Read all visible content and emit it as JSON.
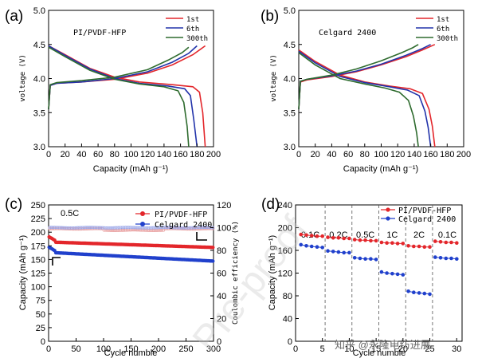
{
  "chart_data": [
    {
      "panel": "(a)",
      "type": "line",
      "inset_label": "PI/PVDF-HFP",
      "xlabel": "Capacity (mAh g⁻¹)",
      "ylabel": "voltage (V)",
      "xlim": [
        0,
        200
      ],
      "ylim": [
        3.0,
        5.0
      ],
      "xticks": [
        "0",
        "20",
        "40",
        "60",
        "80",
        "100",
        "120",
        "140",
        "160",
        "180",
        "200"
      ],
      "yticks": [
        "3.0",
        "3.5",
        "4.0",
        "4.5",
        "5.0"
      ],
      "series": [
        {
          "name": "1st",
          "color": "#e3262b",
          "cap": 190,
          "charge": [
            [
              0,
              3.55
            ],
            [
              2,
              3.9
            ],
            [
              10,
              3.93
            ],
            [
              40,
              3.95
            ],
            [
              80,
              3.99
            ],
            [
              120,
              4.08
            ],
            [
              150,
              4.2
            ],
            [
              175,
              4.35
            ],
            [
              190,
              4.48
            ]
          ],
          "discharge": [
            [
              0,
              4.48
            ],
            [
              20,
              4.35
            ],
            [
              50,
              4.15
            ],
            [
              80,
              4.02
            ],
            [
              110,
              3.95
            ],
            [
              150,
              3.91
            ],
            [
              175,
              3.88
            ],
            [
              183,
              3.8
            ],
            [
              187,
              3.5
            ],
            [
              190,
              3.0
            ]
          ]
        },
        {
          "name": "6th",
          "color": "#2233aa",
          "cap": 180,
          "charge": [
            [
              0,
              3.55
            ],
            [
              2,
              3.9
            ],
            [
              10,
              3.93
            ],
            [
              40,
              3.95
            ],
            [
              80,
              4.0
            ],
            [
              120,
              4.1
            ],
            [
              150,
              4.24
            ],
            [
              170,
              4.37
            ],
            [
              180,
              4.48
            ]
          ],
          "discharge": [
            [
              0,
              4.48
            ],
            [
              20,
              4.34
            ],
            [
              50,
              4.14
            ],
            [
              80,
              4.0
            ],
            [
              110,
              3.93
            ],
            [
              145,
              3.89
            ],
            [
              165,
              3.85
            ],
            [
              172,
              3.75
            ],
            [
              176,
              3.4
            ],
            [
              180,
              3.0
            ]
          ]
        },
        {
          "name": "300th",
          "color": "#2e6b2e",
          "cap": 170,
          "charge": [
            [
              0,
              3.55
            ],
            [
              2,
              3.91
            ],
            [
              10,
              3.94
            ],
            [
              40,
              3.97
            ],
            [
              80,
              4.02
            ],
            [
              120,
              4.13
            ],
            [
              145,
              4.27
            ],
            [
              162,
              4.38
            ],
            [
              170,
              4.46
            ]
          ],
          "discharge": [
            [
              0,
              4.46
            ],
            [
              20,
              4.32
            ],
            [
              50,
              4.12
            ],
            [
              80,
              3.99
            ],
            [
              110,
              3.92
            ],
            [
              140,
              3.88
            ],
            [
              157,
              3.82
            ],
            [
              164,
              3.65
            ],
            [
              168,
              3.3
            ],
            [
              170,
              3.0
            ]
          ]
        }
      ]
    },
    {
      "panel": "(b)",
      "type": "line",
      "inset_label": "Celgard 2400",
      "xlabel": "Capacity (mAh g⁻¹)",
      "ylabel": "voltage (V)",
      "xlim": [
        0,
        200
      ],
      "ylim": [
        3.0,
        5.0
      ],
      "xticks": [
        "0",
        "20",
        "40",
        "60",
        "80",
        "100",
        "120",
        "140",
        "160",
        "180",
        "200"
      ],
      "yticks": [
        "3.0",
        "3.5",
        "4.0",
        "4.5",
        "5.0"
      ],
      "series": [
        {
          "name": "1st",
          "color": "#e3262b",
          "cap": 165,
          "charge": [
            [
              0,
              3.55
            ],
            [
              2,
              3.95
            ],
            [
              10,
              3.98
            ],
            [
              40,
              4.03
            ],
            [
              70,
              4.1
            ],
            [
              100,
              4.2
            ],
            [
              130,
              4.32
            ],
            [
              150,
              4.42
            ],
            [
              165,
              4.5
            ]
          ],
          "discharge": [
            [
              0,
              4.42
            ],
            [
              20,
              4.25
            ],
            [
              50,
              4.05
            ],
            [
              80,
              3.95
            ],
            [
              110,
              3.89
            ],
            [
              135,
              3.85
            ],
            [
              150,
              3.78
            ],
            [
              158,
              3.55
            ],
            [
              162,
              3.3
            ],
            [
              165,
              3.0
            ]
          ]
        },
        {
          "name": "6th",
          "color": "#2233aa",
          "cap": 160,
          "charge": [
            [
              0,
              3.55
            ],
            [
              2,
              3.96
            ],
            [
              10,
              3.99
            ],
            [
              40,
              4.04
            ],
            [
              70,
              4.11
            ],
            [
              100,
              4.21
            ],
            [
              130,
              4.34
            ],
            [
              150,
              4.44
            ],
            [
              160,
              4.5
            ]
          ],
          "discharge": [
            [
              0,
              4.4
            ],
            [
              20,
              4.23
            ],
            [
              50,
              4.03
            ],
            [
              80,
              3.94
            ],
            [
              110,
              3.88
            ],
            [
              132,
              3.83
            ],
            [
              146,
              3.75
            ],
            [
              153,
              3.52
            ],
            [
              157,
              3.28
            ],
            [
              160,
              3.0
            ]
          ]
        },
        {
          "name": "300th",
          "color": "#2e6b2e",
          "cap": 145,
          "charge": [
            [
              0,
              3.55
            ],
            [
              2,
              3.96
            ],
            [
              10,
              3.99
            ],
            [
              40,
              4.05
            ],
            [
              70,
              4.14
            ],
            [
              100,
              4.26
            ],
            [
              125,
              4.38
            ],
            [
              138,
              4.45
            ],
            [
              145,
              4.5
            ]
          ],
          "discharge": [
            [
              0,
              4.38
            ],
            [
              20,
              4.2
            ],
            [
              50,
              4.0
            ],
            [
              80,
              3.92
            ],
            [
              105,
              3.86
            ],
            [
              122,
              3.8
            ],
            [
              133,
              3.68
            ],
            [
              139,
              3.45
            ],
            [
              143,
              3.2
            ],
            [
              145,
              3.0
            ]
          ]
        }
      ]
    },
    {
      "panel": "(c)",
      "type": "scatter",
      "rate_label": "0.5C",
      "xlabel": "Cycle numble",
      "ylabel": "Capacity (mAh g⁻¹)",
      "y2label": "Coulombic efficiency (%)",
      "xlim": [
        0,
        300
      ],
      "ylim": [
        0,
        250
      ],
      "y2lim": [
        0,
        120
      ],
      "xticks": [
        "0",
        "50",
        "100",
        "150",
        "200",
        "250",
        "300"
      ],
      "yticks": [
        "0",
        "25",
        "50",
        "75",
        "100",
        "125",
        "150",
        "175",
        "200",
        "225",
        "250"
      ],
      "y2ticks": [
        "0",
        "20",
        "40",
        "60",
        "80",
        "100",
        "120"
      ],
      "series": [
        {
          "name": "PI/PVDF-HFP",
          "color": "#e3262b",
          "start": 182,
          "end": 172
        },
        {
          "name": "Celgard 2400",
          "color": "#2040cc",
          "start": 163,
          "end": 147
        }
      ],
      "efficiency": [
        {
          "name": "PI/PVDF-HFP CE",
          "color": "#e79a9a",
          "value": 99
        },
        {
          "name": "Celgard 2400 CE",
          "color": "#9aa6e8",
          "value": 100
        }
      ]
    },
    {
      "panel": "(d)",
      "type": "line",
      "xlabel": "Cycle numble",
      "ylabel": "Capacity (mAh g⁻¹)",
      "xlim": [
        0,
        31
      ],
      "ylim": [
        0,
        240
      ],
      "xticks": [
        "0",
        "5",
        "10",
        "15",
        "20",
        "25",
        "30"
      ],
      "yticks": [
        "0",
        "40",
        "80",
        "120",
        "160",
        "200",
        "240"
      ],
      "rates": [
        "0.1C",
        "0.2C",
        "0.5C",
        "1C",
        "2C",
        "0.1C"
      ],
      "boundaries": [
        5.5,
        10.5,
        15.5,
        20.5,
        25.5
      ],
      "series": [
        {
          "name": "PI/PVDF-HFP",
          "color": "#e3262b",
          "values": [
            188,
            187,
            186,
            185,
            185,
            183,
            182,
            182,
            181,
            181,
            179,
            178,
            178,
            177,
            177,
            174,
            173,
            173,
            172,
            172,
            168,
            167,
            167,
            166,
            166,
            176,
            175,
            174,
            174,
            173
          ]
        },
        {
          "name": "Celgard 2400",
          "color": "#2040cc",
          "values": [
            170,
            168,
            167,
            166,
            165,
            159,
            158,
            157,
            156,
            156,
            147,
            146,
            145,
            145,
            144,
            122,
            120,
            119,
            118,
            117,
            88,
            86,
            85,
            84,
            83,
            148,
            147,
            146,
            146,
            145
          ]
        }
      ]
    }
  ],
  "watermark": {
    "zhihu": "知乎 @永隆电纺进展",
    "diagonal": "Pre-proof"
  }
}
